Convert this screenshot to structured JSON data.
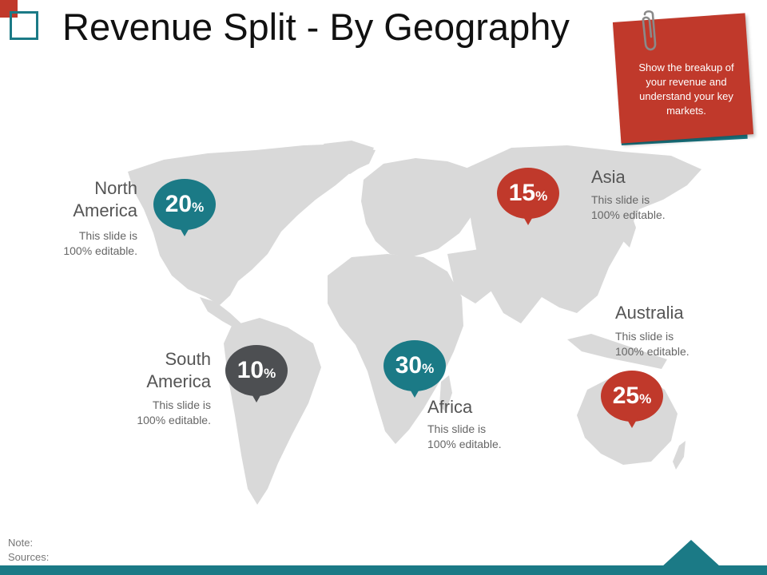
{
  "slide": {
    "title": "Revenue Split - By Geography"
  },
  "note": {
    "text": "Show the breakup of your revenue and understand your key markets."
  },
  "regions": {
    "north_america": {
      "name_line1": "North",
      "name_line2": "America",
      "desc_line1": "This slide is",
      "desc_line2": "100% editable.",
      "value": "20",
      "unit": "%",
      "color": "#1b7a86"
    },
    "south_america": {
      "name_line1": "South",
      "name_line2": "America",
      "desc_line1": "This slide is",
      "desc_line2": "100% editable.",
      "value": "10",
      "unit": "%",
      "color": "#4d4f52"
    },
    "africa": {
      "name": "Africa",
      "desc_line1": "This slide is",
      "desc_line2": "100% editable.",
      "value": "30",
      "unit": "%",
      "color": "#1b7a86"
    },
    "asia": {
      "name": "Asia",
      "desc_line1": "This slide is",
      "desc_line2": "100% editable.",
      "value": "15",
      "unit": "%",
      "color": "#c0392b"
    },
    "australia": {
      "name": "Australia",
      "desc_line1": "This slide is",
      "desc_line2": "100% editable.",
      "value": "25",
      "unit": "%",
      "color": "#c0392b"
    }
  },
  "footer": {
    "note_label": "Note:",
    "sources_label": "Sources:"
  },
  "colors": {
    "teal": "#1b7a86",
    "red": "#c0392b",
    "dark_gray": "#4d4f52",
    "map_gray": "#d9d9d9"
  }
}
